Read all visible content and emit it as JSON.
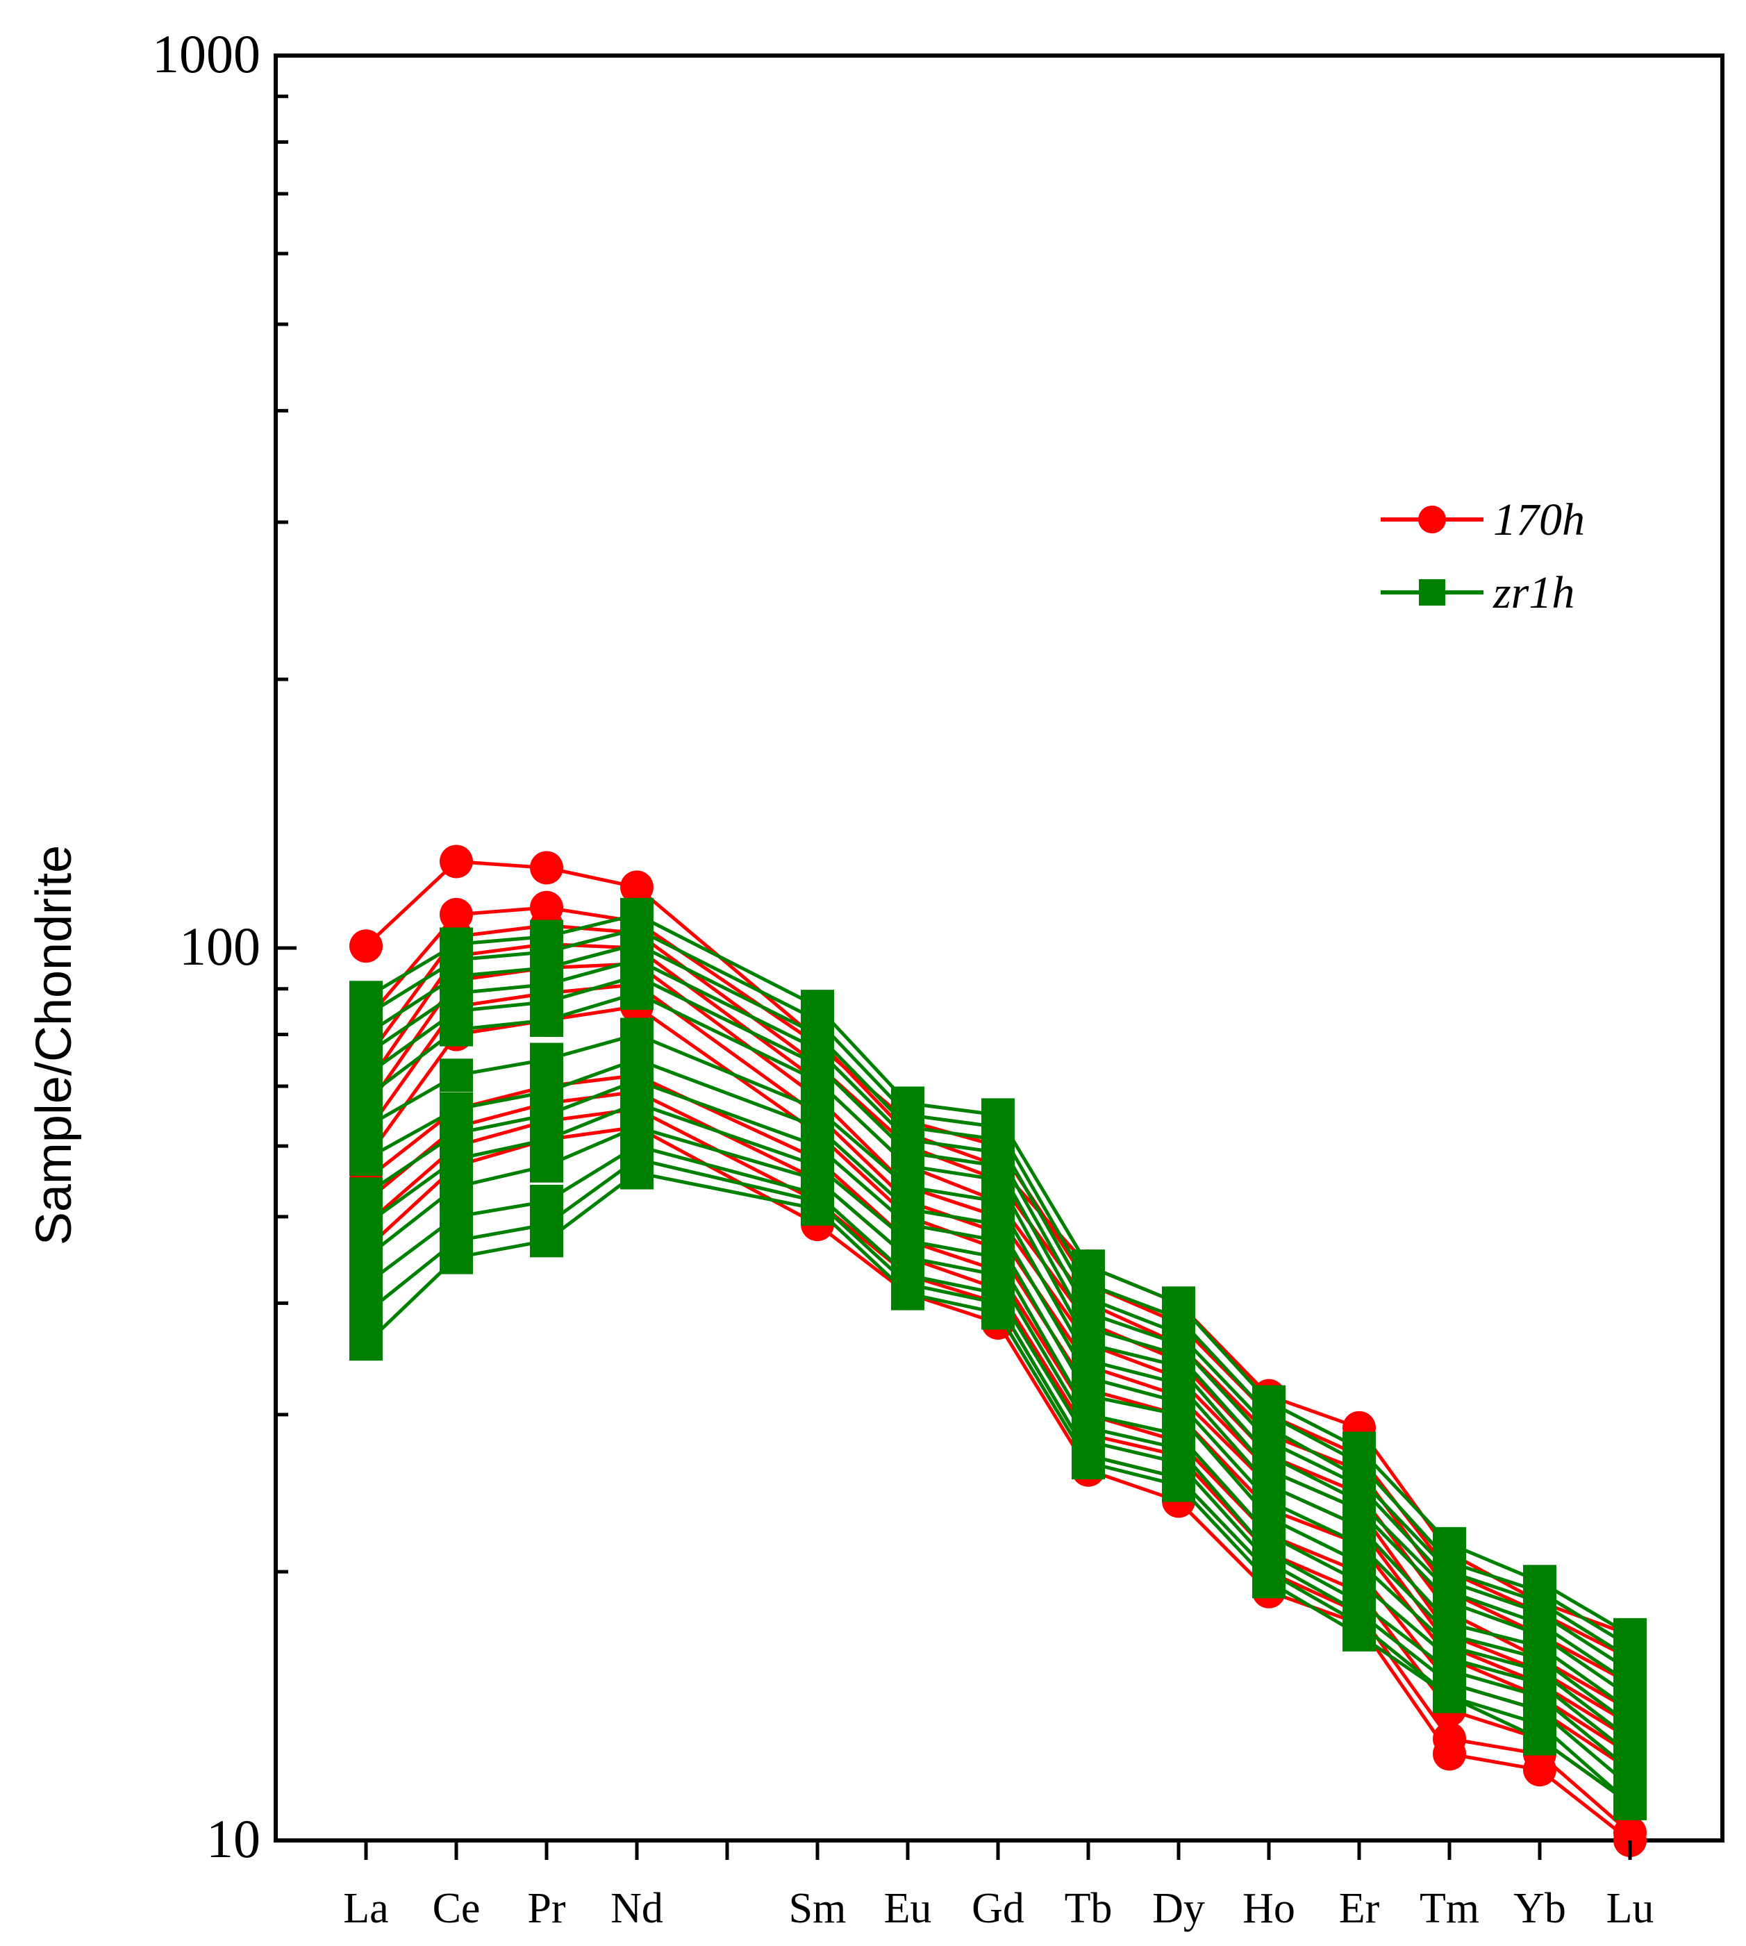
{
  "chart_data": {
    "type": "line",
    "title": "",
    "xlabel": "",
    "ylabel": "Sample/Chondrite",
    "yscale": "log",
    "ylim": [
      10,
      1000
    ],
    "y_tick_labels": [
      "10",
      "100",
      "1000"
    ],
    "categories": [
      "La",
      "Ce",
      "Pr",
      "Nd",
      "",
      "Sm",
      "Eu",
      "Gd",
      "Tb",
      "Dy",
      "Ho",
      "Er",
      "Tm",
      "Yb",
      "Lu"
    ],
    "legend_position": "upper-right",
    "colors": {
      "170h": "#ff0000",
      "zr1h": "#008000"
    },
    "series_groups": [
      {
        "name": "170h",
        "marker": "circle",
        "series": [
          [
            100.5,
            125.0,
            123.0,
            117.0,
            null,
            79.0,
            62.0,
            57.0,
            44.0,
            40.0,
            31.5,
            29.0,
            21.0,
            18.5,
            17.0
          ],
          [
            83.0,
            109.0,
            111.0,
            107.0,
            null,
            78.0,
            64.0,
            60.0,
            42.0,
            38.0,
            30.0,
            27.0,
            20.0,
            18.0,
            16.0
          ],
          [
            75.0,
            103.0,
            106.0,
            104.0,
            null,
            74.0,
            60.0,
            55.0,
            40.0,
            36.0,
            28.5,
            26.0,
            19.0,
            17.0,
            15.0
          ],
          [
            70.0,
            98.0,
            101.0,
            100.0,
            null,
            71.0,
            57.0,
            52.0,
            38.0,
            34.5,
            27.0,
            24.5,
            18.0,
            16.0,
            14.0
          ],
          [
            66.0,
            92.0,
            95.0,
            96.0,
            null,
            68.0,
            54.0,
            50.0,
            36.0,
            33.0,
            26.0,
            23.5,
            17.0,
            15.5,
            13.5
          ],
          [
            62.0,
            86.0,
            89.0,
            91.0,
            null,
            65.0,
            52.0,
            48.0,
            34.0,
            31.5,
            25.0,
            22.5,
            16.5,
            15.0,
            13.0
          ],
          [
            58.0,
            80.0,
            83.0,
            86.0,
            null,
            62.0,
            50.0,
            46.0,
            32.0,
            30.0,
            23.5,
            21.5,
            16.0,
            14.5,
            12.5
          ],
          [
            55.0,
            66.0,
            70.0,
            72.0,
            null,
            58.0,
            47.0,
            43.5,
            30.0,
            28.0,
            22.0,
            20.0,
            15.0,
            14.0,
            12.0
          ],
          [
            52.0,
            63.0,
            67.0,
            69.0,
            null,
            55.0,
            45.0,
            41.5,
            28.5,
            27.0,
            21.0,
            19.0,
            14.0,
            13.0,
            11.0
          ],
          [
            49.0,
            60.0,
            64.0,
            66.0,
            null,
            52.0,
            43.0,
            40.0,
            27.0,
            25.5,
            20.0,
            18.0,
            13.0,
            12.5,
            10.2
          ],
          [
            46.0,
            57.0,
            61.0,
            63.0,
            null,
            49.0,
            41.0,
            38.0,
            26.0,
            24.0,
            19.0,
            17.5,
            12.5,
            12.0,
            10.0
          ]
        ]
      },
      {
        "name": "zr1h",
        "marker": "square",
        "series": [
          [
            88.0,
            101.0,
            103.0,
            109.0,
            null,
            86.0,
            67.0,
            65.0,
            44.0,
            40.0,
            31.0,
            27.5,
            21.5,
            19.5,
            17.0
          ],
          [
            84.0,
            97.0,
            99.0,
            105.0,
            null,
            83.0,
            65.0,
            63.0,
            42.0,
            38.5,
            30.0,
            26.5,
            20.5,
            19.0,
            16.5
          ],
          [
            80.0,
            93.0,
            95.0,
            101.0,
            null,
            80.0,
            63.0,
            61.0,
            40.5,
            37.0,
            29.0,
            25.5,
            20.0,
            18.5,
            16.0
          ],
          [
            76.0,
            89.0,
            91.0,
            97.0,
            null,
            77.0,
            61.0,
            59.0,
            39.0,
            36.0,
            28.0,
            25.0,
            19.5,
            18.0,
            15.5
          ],
          [
            72.0,
            85.0,
            87.0,
            93.0,
            null,
            74.0,
            59.0,
            57.0,
            37.5,
            35.0,
            27.0,
            24.0,
            19.0,
            17.5,
            15.0
          ],
          [
            68.0,
            81.0,
            83.0,
            89.0,
            null,
            71.0,
            57.0,
            55.0,
            36.0,
            34.0,
            26.0,
            23.5,
            18.5,
            17.0,
            14.5
          ],
          [
            63.0,
            72.0,
            75.0,
            80.0,
            null,
            66.0,
            54.0,
            52.0,
            34.5,
            32.5,
            25.0,
            22.5,
            17.5,
            16.5,
            14.0
          ],
          [
            58.0,
            66.0,
            69.0,
            75.0,
            null,
            63.0,
            51.0,
            49.0,
            33.0,
            31.0,
            24.0,
            21.5,
            17.0,
            16.0,
            13.5
          ],
          [
            53.0,
            62.0,
            65.0,
            71.0,
            null,
            60.0,
            49.0,
            47.0,
            31.5,
            30.0,
            23.0,
            20.5,
            16.5,
            15.5,
            13.0
          ],
          [
            49.0,
            58.0,
            61.0,
            67.0,
            null,
            57.0,
            47.0,
            45.0,
            30.0,
            28.5,
            22.0,
            19.5,
            16.0,
            15.0,
            12.5
          ],
          [
            45.0,
            54.0,
            57.0,
            63.0,
            null,
            55.0,
            45.0,
            43.0,
            29.0,
            27.5,
            21.0,
            18.5,
            15.5,
            14.5,
            12.0
          ],
          [
            42.0,
            50.0,
            52.0,
            60.0,
            null,
            53.0,
            43.0,
            41.0,
            28.0,
            26.5,
            20.5,
            18.0,
            15.0,
            14.0,
            11.5
          ],
          [
            39.0,
            47.0,
            49.0,
            58.0,
            null,
            52.0,
            42.0,
            40.0,
            27.0,
            25.5,
            20.0,
            17.5,
            14.5,
            13.5,
            11.0
          ],
          [
            36.0,
            45.0,
            47.0,
            56.0,
            null,
            51.0,
            41.0,
            39.0,
            26.5,
            25.0,
            19.5,
            17.0,
            14.5,
            13.0,
            11.0
          ]
        ]
      }
    ]
  }
}
